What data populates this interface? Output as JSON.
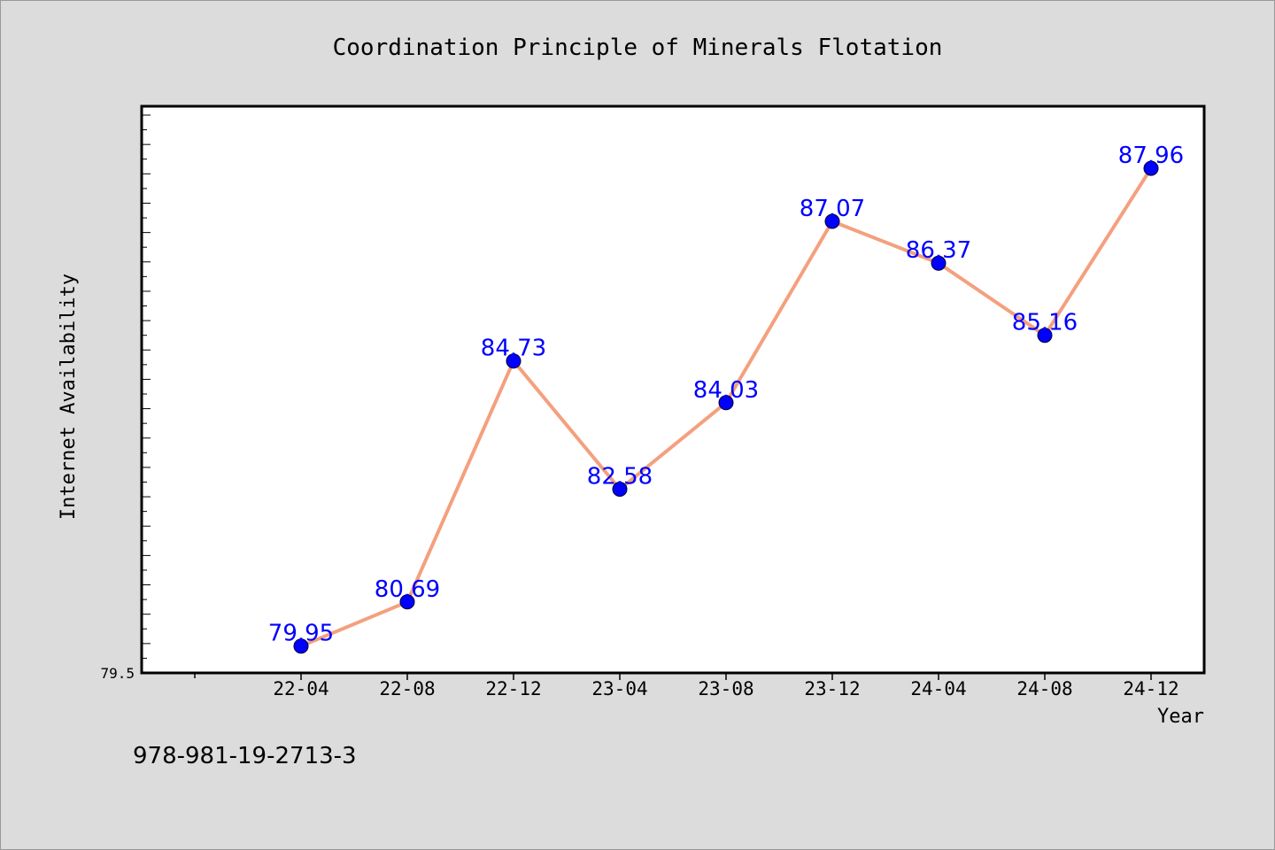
{
  "chart_data": {
    "type": "line",
    "title": "Coordination Principle of Minerals Flotation",
    "xlabel": "Year",
    "ylabel": "Internet Availability",
    "categories": [
      "22-04",
      "22-08",
      "22-12",
      "23-04",
      "23-08",
      "23-12",
      "24-04",
      "24-08",
      "24-12"
    ],
    "series": [
      {
        "values": [
          79.95,
          80.69,
          84.73,
          82.58,
          84.03,
          87.07,
          86.37,
          85.16,
          87.96
        ],
        "labels": [
          "79.95",
          "80.69",
          "84.73",
          "82.58",
          "84.03",
          "87.07",
          "86.37",
          "85.16",
          "87.96"
        ]
      }
    ],
    "ylim": [
      79.5,
      89.0
    ],
    "y_tick_labels": [
      "79.5"
    ],
    "grid": false,
    "colors": {
      "line": "#f4a07e",
      "marker": "#0000ff",
      "data_label": "#0000ff",
      "plot_background": "#ffffff",
      "page_background": "#dcdcdc"
    }
  },
  "footer": {
    "isbn": "978-981-19-2713-3"
  }
}
